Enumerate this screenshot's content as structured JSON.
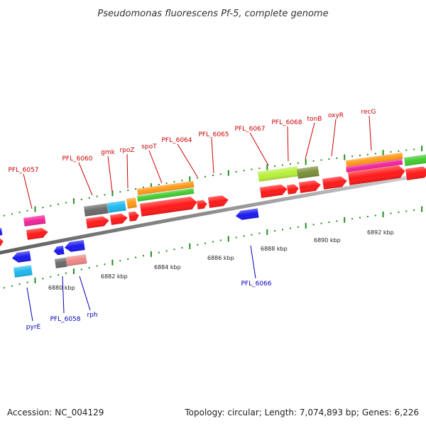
{
  "title": "Pseudomonas fluorescens Pf-5, complete genome",
  "footer": {
    "accession": "Accession: NC_004129",
    "info": "Topology: circular; Length: 7,074,893 bp; Genes: 6,226"
  },
  "kbp_labels": [
    "6880 kbp",
    "6882 kbp",
    "6884 kbp",
    "6886 kbp",
    "6888 kbp",
    "6890 kbp",
    "6892 kbp"
  ],
  "upper_gene_labels": [
    "PFL_6057",
    "PFL_6060",
    "gmk",
    "rpoZ",
    "spoT",
    "PFL_6064",
    "PFL_6065",
    "PFL_6067",
    "PFL_6068",
    "tonB",
    "oxyR",
    "recG"
  ],
  "lower_gene_labels": [
    "pyrE",
    "PFL_6058",
    "rph",
    "PFL_6066"
  ],
  "colors": {
    "upper_label": "#cc0000",
    "lower_label": "#0000bb",
    "gene_red": "#ff1a1a",
    "gene_blue": "#1a1aee",
    "gene_cyan": "#1fb8ee",
    "gene_magenta": "#f0259a",
    "gene_gray": "#6b6b6b",
    "gene_orange": "#ff9a1a",
    "gene_green": "#44cc33",
    "gene_lime": "#b7ef3a",
    "gene_olive": "#7a8f3a",
    "gene_pink": "#ee8888",
    "tick_green": "#1f8f1f"
  }
}
